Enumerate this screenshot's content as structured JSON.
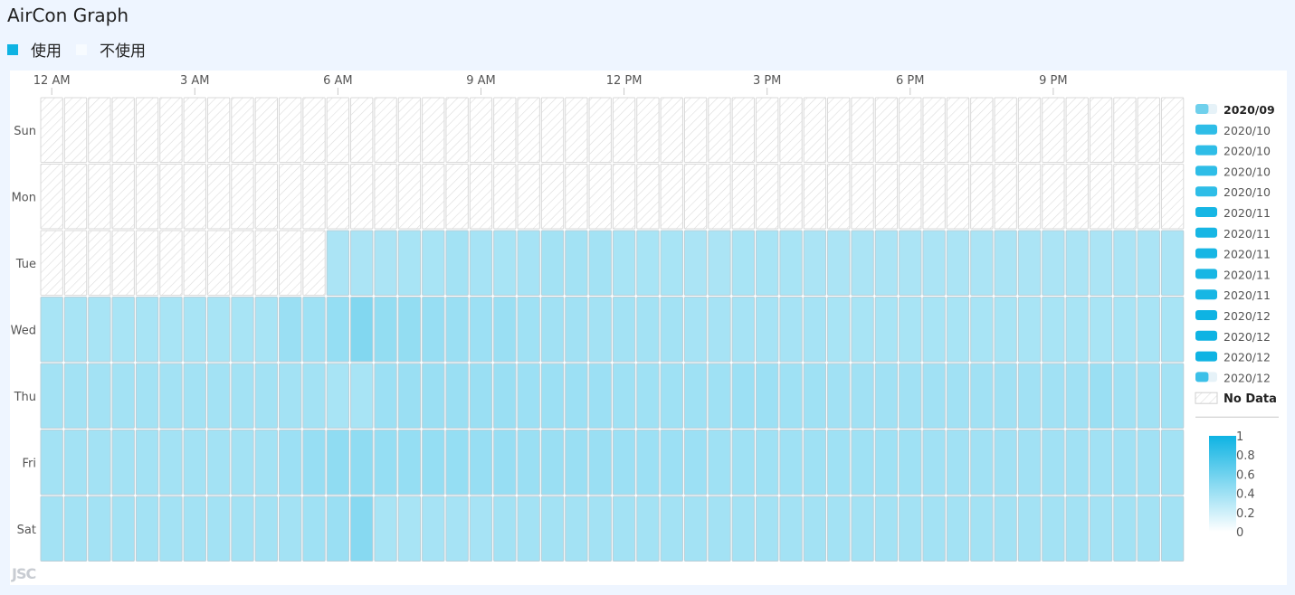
{
  "title": "AirCon Graph",
  "top_legend": [
    {
      "label": "使用",
      "color": "#0eb3e3"
    },
    {
      "label": "不使用",
      "color": "#f7fbff"
    }
  ],
  "credit": "JSC",
  "colors": {
    "accent": "#0eb3e3",
    "cell_border": "#c9d3da",
    "nodata_stroke": "#d9d9d9",
    "page_bg": "#eef5ff",
    "panel_bg": "#ffffff"
  },
  "chart_data": {
    "type": "heatmap",
    "title": "",
    "x_tick_labels": [
      "12 AM",
      "3 AM",
      "6 AM",
      "9 AM",
      "12 PM",
      "3 PM",
      "6 PM",
      "9 PM"
    ],
    "x_tick_every_hours": 3,
    "slots_per_day": 48,
    "rows": [
      "Sun",
      "Mon",
      "Tue",
      "Wed",
      "Thu",
      "Fri",
      "Sat"
    ],
    "value_range": [
      0,
      1
    ],
    "color_scale": {
      "low": "#ffffff",
      "high": "#0eb3e3",
      "ticks": [
        "1",
        "0.8",
        "0.6",
        "0.4",
        "0.2",
        "0"
      ]
    },
    "no_data_label": "No Data",
    "month_legend": [
      {
        "label": "2020/09",
        "selected": true,
        "fill": 0.6
      },
      {
        "label": "2020/10",
        "selected": false,
        "fill": 1
      },
      {
        "label": "2020/10",
        "selected": false,
        "fill": 1
      },
      {
        "label": "2020/10",
        "selected": false,
        "fill": 1
      },
      {
        "label": "2020/10",
        "selected": false,
        "fill": 1
      },
      {
        "label": "2020/11",
        "selected": false,
        "fill": 1
      },
      {
        "label": "2020/11",
        "selected": false,
        "fill": 1
      },
      {
        "label": "2020/11",
        "selected": false,
        "fill": 1
      },
      {
        "label": "2020/11",
        "selected": false,
        "fill": 1
      },
      {
        "label": "2020/11",
        "selected": false,
        "fill": 1
      },
      {
        "label": "2020/12",
        "selected": false,
        "fill": 1
      },
      {
        "label": "2020/12",
        "selected": false,
        "fill": 1
      },
      {
        "label": "2020/12",
        "selected": false,
        "fill": 1
      },
      {
        "label": "2020/12",
        "selected": false,
        "fill": 0.6
      }
    ],
    "values": [
      [
        null,
        null,
        null,
        null,
        null,
        null,
        null,
        null,
        null,
        null,
        null,
        null,
        null,
        null,
        null,
        null,
        null,
        null,
        null,
        null,
        null,
        null,
        null,
        null,
        null,
        null,
        null,
        null,
        null,
        null,
        null,
        null,
        null,
        null,
        null,
        null,
        null,
        null,
        null,
        null,
        null,
        null,
        null,
        null,
        null,
        null,
        null,
        null
      ],
      [
        null,
        null,
        null,
        null,
        null,
        null,
        null,
        null,
        null,
        null,
        null,
        null,
        null,
        null,
        null,
        null,
        null,
        null,
        null,
        null,
        null,
        null,
        null,
        null,
        null,
        null,
        null,
        null,
        null,
        null,
        null,
        null,
        null,
        null,
        null,
        null,
        null,
        null,
        null,
        null,
        null,
        null,
        null,
        null,
        null,
        null,
        null,
        null
      ],
      [
        null,
        null,
        null,
        null,
        null,
        null,
        null,
        null,
        null,
        null,
        null,
        null,
        0.35,
        0.35,
        0.35,
        0.36,
        0.36,
        0.38,
        0.37,
        0.36,
        0.37,
        0.38,
        0.38,
        0.38,
        0.36,
        0.36,
        0.36,
        0.35,
        0.35,
        0.36,
        0.36,
        0.36,
        0.35,
        0.35,
        0.35,
        0.35,
        0.35,
        0.35,
        0.35,
        0.35,
        0.35,
        0.35,
        0.35,
        0.35,
        0.35,
        0.35,
        0.35,
        0.35
      ],
      [
        0.36,
        0.36,
        0.36,
        0.36,
        0.36,
        0.36,
        0.36,
        0.36,
        0.36,
        0.36,
        0.42,
        0.4,
        0.44,
        0.52,
        0.45,
        0.45,
        0.43,
        0.42,
        0.41,
        0.42,
        0.4,
        0.39,
        0.39,
        0.38,
        0.38,
        0.38,
        0.38,
        0.37,
        0.37,
        0.37,
        0.37,
        0.37,
        0.37,
        0.36,
        0.36,
        0.36,
        0.36,
        0.36,
        0.36,
        0.36,
        0.36,
        0.36,
        0.36,
        0.36,
        0.36,
        0.36,
        0.36,
        0.36
      ],
      [
        0.38,
        0.38,
        0.38,
        0.38,
        0.38,
        0.38,
        0.38,
        0.38,
        0.38,
        0.38,
        0.38,
        0.38,
        0.36,
        0.36,
        0.41,
        0.42,
        0.42,
        0.42,
        0.42,
        0.42,
        0.41,
        0.41,
        0.41,
        0.41,
        0.4,
        0.4,
        0.4,
        0.4,
        0.4,
        0.41,
        0.41,
        0.4,
        0.4,
        0.39,
        0.39,
        0.39,
        0.39,
        0.39,
        0.39,
        0.39,
        0.39,
        0.39,
        0.39,
        0.39,
        0.42,
        0.39,
        0.39,
        0.38
      ],
      [
        0.38,
        0.38,
        0.38,
        0.38,
        0.38,
        0.38,
        0.38,
        0.38,
        0.38,
        0.38,
        0.41,
        0.43,
        0.46,
        0.46,
        0.44,
        0.44,
        0.44,
        0.44,
        0.43,
        0.43,
        0.42,
        0.42,
        0.42,
        0.42,
        0.41,
        0.41,
        0.41,
        0.41,
        0.4,
        0.4,
        0.4,
        0.4,
        0.4,
        0.4,
        0.4,
        0.4,
        0.4,
        0.39,
        0.39,
        0.39,
        0.39,
        0.39,
        0.39,
        0.39,
        0.39,
        0.39,
        0.39,
        0.38
      ],
      [
        0.38,
        0.38,
        0.38,
        0.38,
        0.38,
        0.38,
        0.38,
        0.38,
        0.38,
        0.38,
        0.38,
        0.4,
        0.42,
        0.5,
        0.36,
        0.36,
        0.37,
        0.37,
        0.37,
        0.38,
        0.38,
        0.38,
        0.38,
        0.38,
        0.38,
        0.38,
        0.38,
        0.38,
        0.38,
        0.38,
        0.38,
        0.38,
        0.38,
        0.38,
        0.38,
        0.38,
        0.38,
        0.38,
        0.38,
        0.38,
        0.38,
        0.38,
        0.38,
        0.38,
        0.38,
        0.38,
        0.38,
        0.38
      ]
    ]
  }
}
